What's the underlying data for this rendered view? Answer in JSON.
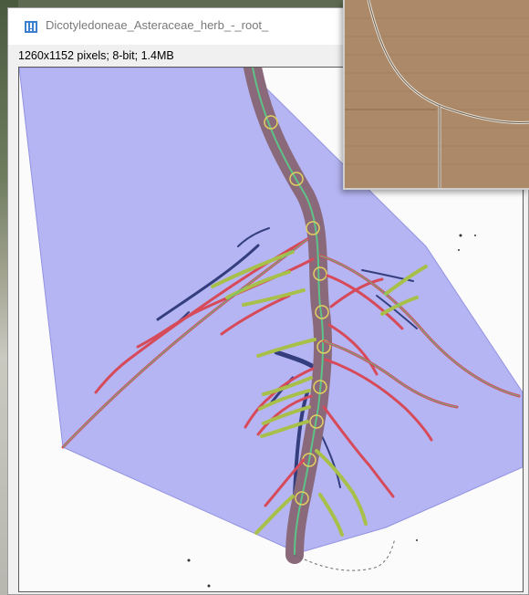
{
  "window": {
    "title": "Dicotyledoneae_Asteraceae_herb_-_root_",
    "icon": "imagej-app-icon",
    "info": "1260x1152 pixels; 8-bit; 1.4MB"
  },
  "overlay_colors": {
    "convex_hull_fill": "#aeb0f2",
    "root_main": "#8a6a7a",
    "root_lateral": "#d64a5a",
    "root_secondary": "#a8c04a",
    "centerline": "#58c58a",
    "root_dark": "#1e2a6a"
  },
  "thumbnail": {
    "description_icon": "aerial-field-image",
    "color": "#b18f6d"
  }
}
